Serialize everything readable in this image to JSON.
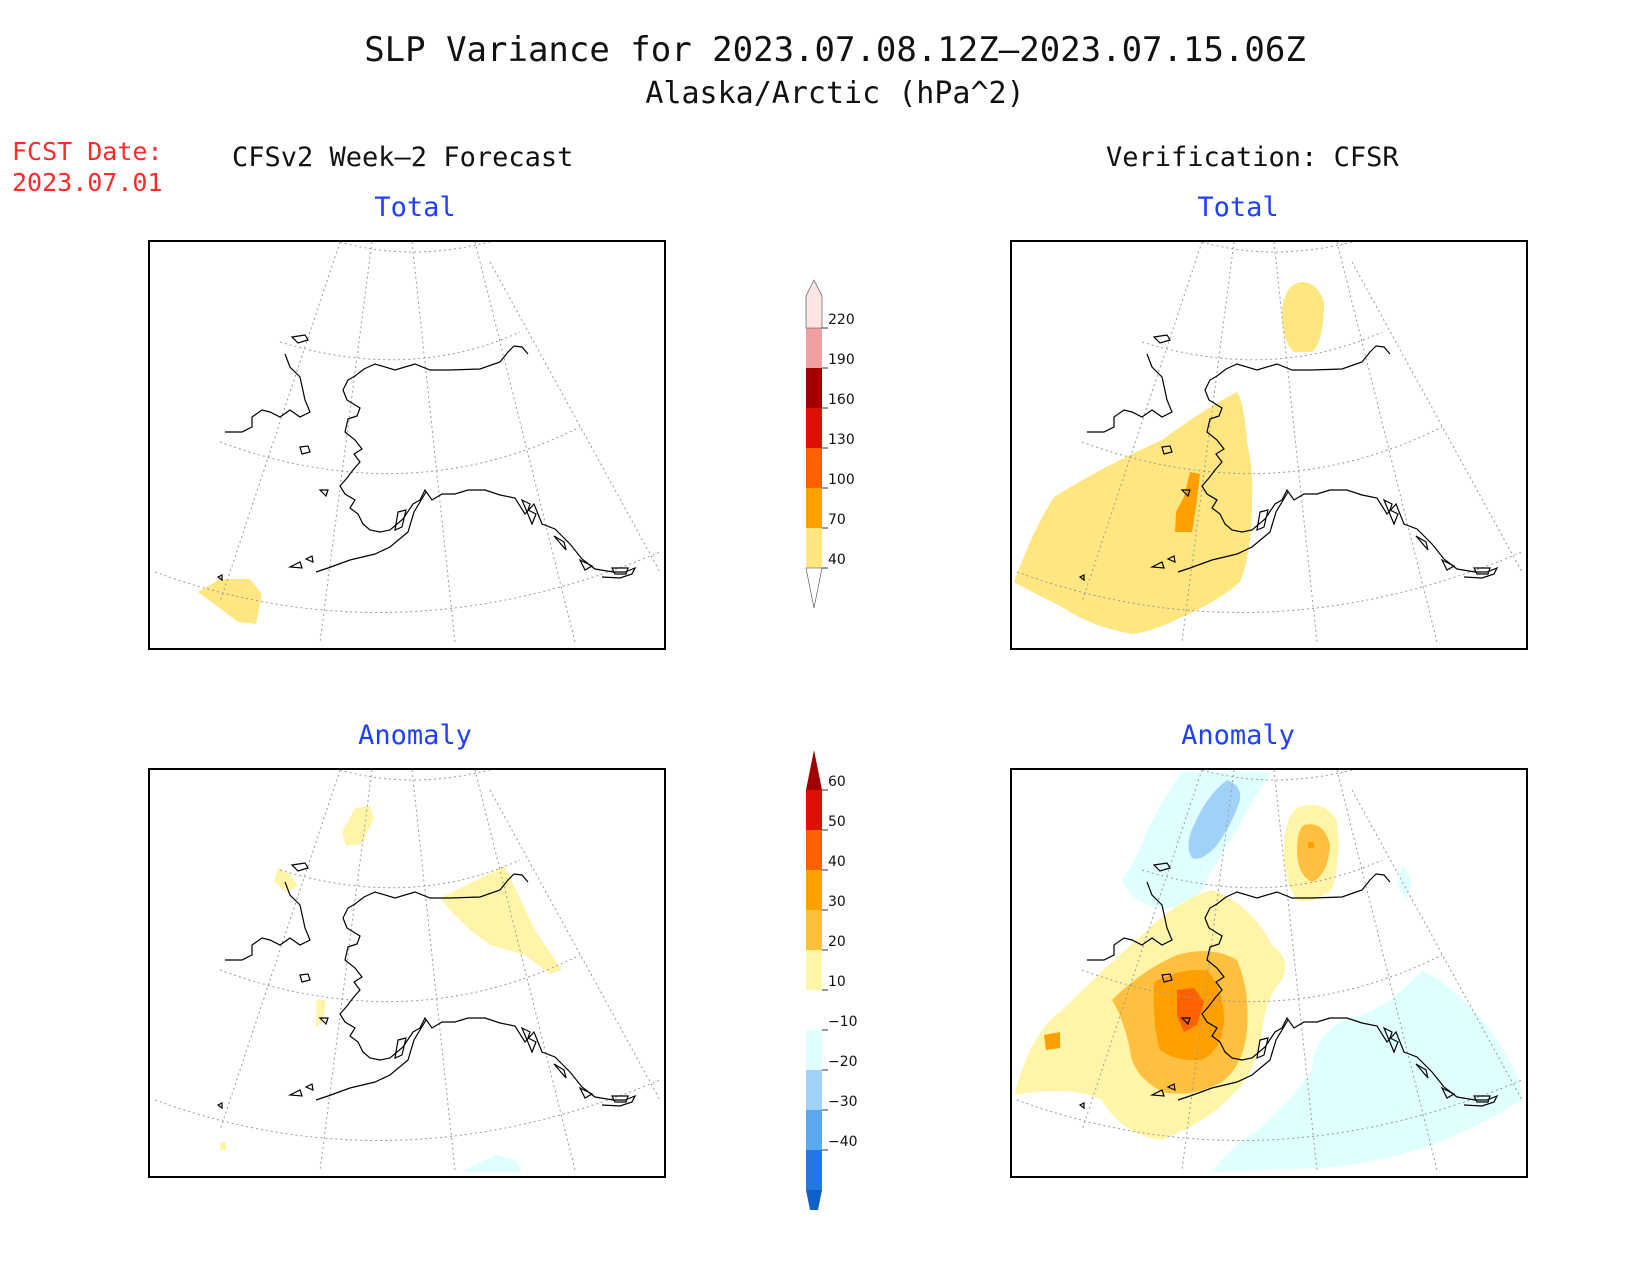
{
  "title": {
    "line1": "SLP Variance for 2023.07.08.12Z–2023.07.15.06Z",
    "line2": "Alaska/Arctic (hPa^2)"
  },
  "forecast_date": {
    "label": "FCST Date:",
    "value": "2023.07.01"
  },
  "columns": {
    "left": "CFSv2 Week–2 Forecast",
    "right": "Verification: CFSR"
  },
  "panels": {
    "forecast_total": "Total",
    "verification_total": "Total",
    "forecast_anomaly": "Anomaly",
    "verification_anomaly": "Anomaly"
  },
  "colorbars": {
    "total": {
      "levels": [
        "40",
        "70",
        "100",
        "130",
        "160",
        "190",
        "220"
      ],
      "colors": [
        "#ffe680",
        "#ffa000",
        "#ff6000",
        "#e01000",
        "#a00000",
        "#f0a0a0",
        "#ffe4e4"
      ]
    },
    "anomaly": {
      "levels": [
        "60",
        "50",
        "40",
        "30",
        "20",
        "10",
        "−10",
        "−20",
        "−30",
        "−40"
      ],
      "colors_top_down": [
        "#a00000",
        "#e01000",
        "#ff6000",
        "#ffa000",
        "#ffc040",
        "#fff5a8",
        "#ffffff",
        "#e0ffff",
        "#a0d2f8",
        "#5aa8f0",
        "#2078e0",
        "#1060c8"
      ]
    }
  }
}
